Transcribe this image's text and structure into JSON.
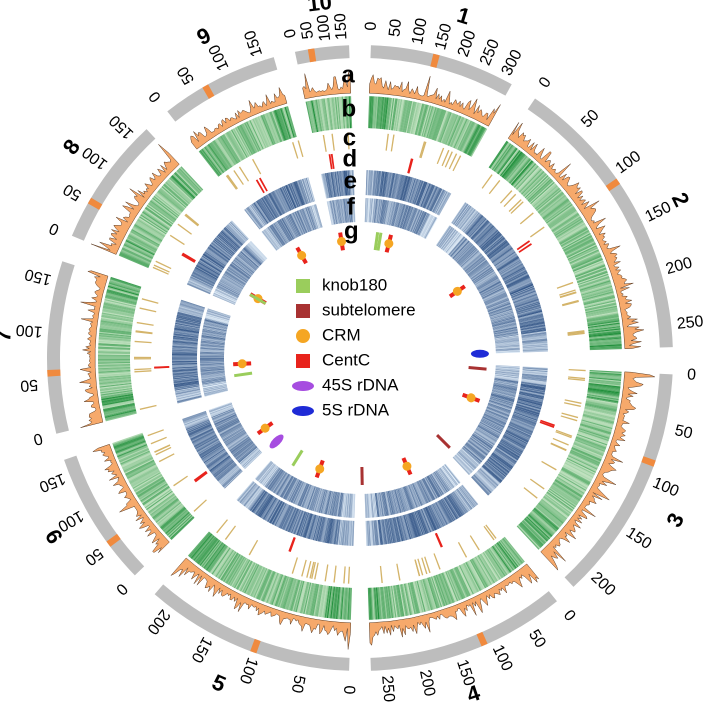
{
  "chromosomes": [
    {
      "id": "1",
      "label": "1",
      "ticks": [
        "0",
        "50",
        "100",
        "150",
        "200",
        "250",
        "300"
      ],
      "centromere": 0.45
    },
    {
      "id": "2",
      "label": "2",
      "ticks": [
        "0",
        "50",
        "100",
        "150",
        "200",
        "250"
      ],
      "centromere": 0.4
    },
    {
      "id": "3",
      "label": "3",
      "ticks": [
        "0",
        "50",
        "100",
        "150",
        "200"
      ],
      "centromere": 0.38
    },
    {
      "id": "4",
      "label": "4",
      "ticks": [
        "0",
        "50",
        "100",
        "150",
        "200",
        "250"
      ],
      "centromere": 0.42
    },
    {
      "id": "5",
      "label": "5",
      "ticks": [
        "0",
        "50",
        "100",
        "150",
        "200"
      ],
      "centromere": 0.46
    },
    {
      "id": "6",
      "label": "6",
      "ticks": [
        "0",
        "50",
        "100",
        "150"
      ],
      "centromere": 0.3
    },
    {
      "id": "7",
      "label": "7",
      "ticks": [
        "0",
        "50",
        "100",
        "150"
      ],
      "centromere": 0.35
    },
    {
      "id": "8",
      "label": "8",
      "ticks": [
        "0",
        "50",
        "100",
        "150"
      ],
      "centromere": 0.3
    },
    {
      "id": "9",
      "label": "9",
      "ticks": [
        "0",
        "50",
        "100",
        "150"
      ],
      "centromere": 0.38
    },
    {
      "id": "10",
      "label": "10",
      "ticks": [
        "0",
        "50",
        "100",
        "150"
      ],
      "centromere": 0.3
    }
  ],
  "tracks": [
    "a",
    "b",
    "c",
    "d",
    "e",
    "f",
    "g"
  ],
  "legend": [
    {
      "label": "knob180",
      "shape": "square",
      "color": "#9acd5c"
    },
    {
      "label": "subtelomere",
      "shape": "square",
      "color": "#a83232"
    },
    {
      "label": "CRM",
      "shape": "circle",
      "color": "#f5a623"
    },
    {
      "label": "CentC",
      "shape": "square",
      "color": "#e8231c"
    },
    {
      "label": "45S rDNA",
      "shape": "ellipse",
      "color": "#a64de0"
    },
    {
      "label": "5S rDNA",
      "shape": "ellipse",
      "color": "#1f2bd6"
    }
  ],
  "colors": {
    "ideogram": "#bdbdbd",
    "centromere": "#f08a3e",
    "density": "#f6a96b",
    "green_dark": "#1f8f3a",
    "green_light": "#e8f5e0",
    "tan": "#d4b46a",
    "centc": "#e8231c",
    "blue_dark": "#08306b",
    "blue_light": "#deebf7"
  }
}
